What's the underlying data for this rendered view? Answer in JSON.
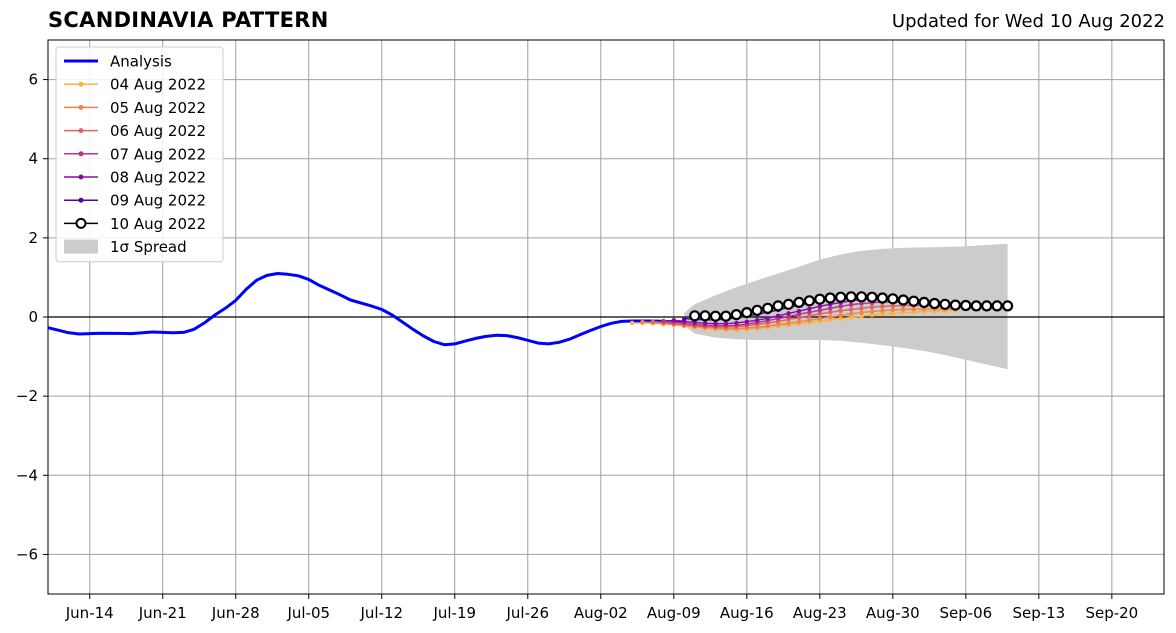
{
  "chart_data": {
    "type": "line",
    "title": "SCANDINAVIA PATTERN",
    "subtitle": "Updated for Wed 10 Aug 2022",
    "xlim": [
      "2022-06-10",
      "2022-09-25"
    ],
    "ylim": [
      -7,
      7
    ],
    "y_ticks": [
      -6,
      -4,
      -2,
      0,
      2,
      4,
      6
    ],
    "y_tick_labels": [
      "−6",
      "−4",
      "−2",
      "0",
      "2",
      "4",
      "6"
    ],
    "x_ticks": [
      "2022-06-14",
      "2022-06-21",
      "2022-06-28",
      "2022-07-05",
      "2022-07-12",
      "2022-07-19",
      "2022-07-26",
      "2022-08-02",
      "2022-08-09",
      "2022-08-16",
      "2022-08-23",
      "2022-08-30",
      "2022-09-06",
      "2022-09-13",
      "2022-09-20"
    ],
    "x_tick_labels": [
      "Jun-14",
      "Jun-21",
      "Jun-28",
      "Jul-05",
      "Jul-12",
      "Jul-19",
      "Jul-26",
      "Aug-02",
      "Aug-09",
      "Aug-16",
      "Aug-23",
      "Aug-30",
      "Sep-06",
      "Sep-13",
      "Sep-20"
    ],
    "grid": true,
    "legend_position": "top-left",
    "zero_line": true,
    "analysis": {
      "name": "Analysis",
      "color": "#0000ff",
      "points": [
        [
          "2022-06-10",
          -0.27
        ],
        [
          "2022-06-12",
          -0.4
        ],
        [
          "2022-06-13",
          -0.43
        ],
        [
          "2022-06-15",
          -0.41
        ],
        [
          "2022-06-18",
          -0.42
        ],
        [
          "2022-06-20",
          -0.38
        ],
        [
          "2022-06-22",
          -0.4
        ],
        [
          "2022-06-23",
          -0.39
        ],
        [
          "2022-06-24",
          -0.31
        ],
        [
          "2022-06-25",
          -0.15
        ],
        [
          "2022-06-26",
          0.05
        ],
        [
          "2022-06-27",
          0.22
        ],
        [
          "2022-06-28",
          0.42
        ],
        [
          "2022-06-29",
          0.7
        ],
        [
          "2022-06-30",
          0.93
        ],
        [
          "2022-07-01",
          1.05
        ],
        [
          "2022-07-02",
          1.1
        ],
        [
          "2022-07-03",
          1.08
        ],
        [
          "2022-07-04",
          1.04
        ],
        [
          "2022-07-05",
          0.95
        ],
        [
          "2022-07-06",
          0.8
        ],
        [
          "2022-07-08",
          0.56
        ],
        [
          "2022-07-09",
          0.43
        ],
        [
          "2022-07-11",
          0.28
        ],
        [
          "2022-07-12",
          0.19
        ],
        [
          "2022-07-13",
          0.05
        ],
        [
          "2022-07-14",
          -0.13
        ],
        [
          "2022-07-15",
          -0.31
        ],
        [
          "2022-07-16",
          -0.48
        ],
        [
          "2022-07-17",
          -0.62
        ],
        [
          "2022-07-18",
          -0.7
        ],
        [
          "2022-07-19",
          -0.68
        ],
        [
          "2022-07-20",
          -0.61
        ],
        [
          "2022-07-21",
          -0.54
        ],
        [
          "2022-07-22",
          -0.49
        ],
        [
          "2022-07-23",
          -0.46
        ],
        [
          "2022-07-24",
          -0.47
        ],
        [
          "2022-07-25",
          -0.52
        ],
        [
          "2022-07-26",
          -0.59
        ],
        [
          "2022-07-27",
          -0.66
        ],
        [
          "2022-07-28",
          -0.68
        ],
        [
          "2022-07-29",
          -0.64
        ],
        [
          "2022-07-30",
          -0.56
        ],
        [
          "2022-07-31",
          -0.45
        ],
        [
          "2022-08-01",
          -0.34
        ],
        [
          "2022-08-02",
          -0.24
        ],
        [
          "2022-08-03",
          -0.16
        ],
        [
          "2022-08-04",
          -0.11
        ],
        [
          "2022-08-05",
          -0.1
        ],
        [
          "2022-08-06",
          -0.1
        ],
        [
          "2022-08-07",
          -0.1
        ],
        [
          "2022-08-08",
          -0.11
        ],
        [
          "2022-08-09",
          -0.12
        ],
        [
          "2022-08-10",
          -0.12
        ]
      ]
    },
    "spread": {
      "name": "1σ Spread",
      "color": "#cccccc",
      "points": [
        [
          "2022-08-10",
          0.1,
          -0.22
        ],
        [
          "2022-08-11",
          0.32,
          -0.42
        ],
        [
          "2022-08-13",
          0.55,
          -0.52
        ],
        [
          "2022-08-15",
          0.75,
          -0.56
        ],
        [
          "2022-08-17",
          0.93,
          -0.58
        ],
        [
          "2022-08-19",
          1.1,
          -0.58
        ],
        [
          "2022-08-21",
          1.27,
          -0.58
        ],
        [
          "2022-08-23",
          1.45,
          -0.58
        ],
        [
          "2022-08-25",
          1.58,
          -0.6
        ],
        [
          "2022-08-27",
          1.67,
          -0.65
        ],
        [
          "2022-08-29",
          1.72,
          -0.71
        ],
        [
          "2022-08-31",
          1.75,
          -0.78
        ],
        [
          "2022-09-02",
          1.76,
          -0.86
        ],
        [
          "2022-09-04",
          1.77,
          -0.96
        ],
        [
          "2022-09-06",
          1.79,
          -1.08
        ],
        [
          "2022-09-08",
          1.82,
          -1.2
        ],
        [
          "2022-09-10",
          1.85,
          -1.32
        ]
      ]
    },
    "forecasts": [
      {
        "name": "04 Aug 2022",
        "color": "#fbb338",
        "start": "2022-08-05",
        "values": [
          -0.15,
          -0.15,
          -0.16,
          -0.18,
          -0.2,
          -0.23,
          -0.26,
          -0.29,
          -0.31,
          -0.32,
          -0.32,
          -0.31,
          -0.29,
          -0.26,
          -0.23,
          -0.2,
          -0.17,
          -0.14,
          -0.1,
          -0.07,
          -0.04,
          -0.01,
          0.02,
          0.05,
          0.07,
          0.09,
          0.11,
          0.13,
          0.14,
          0.15,
          0.16,
          0.17
        ]
      },
      {
        "name": "05 Aug 2022",
        "color": "#f1844b",
        "start": "2022-08-06",
        "values": [
          -0.13,
          -0.14,
          -0.16,
          -0.18,
          -0.21,
          -0.24,
          -0.26,
          -0.28,
          -0.29,
          -0.29,
          -0.28,
          -0.26,
          -0.23,
          -0.19,
          -0.16,
          -0.12,
          -0.08,
          -0.04,
          0.0,
          0.04,
          0.08,
          0.11,
          0.14,
          0.16,
          0.18,
          0.19,
          0.2,
          0.2,
          0.2,
          0.2,
          0.2
        ]
      },
      {
        "name": "06 Aug 2022",
        "color": "#e16462",
        "start": "2022-08-07",
        "values": [
          -0.12,
          -0.14,
          -0.17,
          -0.19,
          -0.22,
          -0.24,
          -0.25,
          -0.25,
          -0.24,
          -0.22,
          -0.19,
          -0.15,
          -0.11,
          -0.06,
          -0.02,
          0.03,
          0.08,
          0.12,
          0.16,
          0.19,
          0.22,
          0.25,
          0.27,
          0.28,
          0.29,
          0.29,
          0.29,
          0.28,
          0.27,
          0.26
        ]
      },
      {
        "name": "07 Aug 2022",
        "color": "#b93289",
        "start": "2022-08-08",
        "values": [
          -0.1,
          -0.13,
          -0.16,
          -0.19,
          -0.21,
          -0.22,
          -0.22,
          -0.21,
          -0.18,
          -0.14,
          -0.09,
          -0.04,
          0.01,
          0.07,
          0.12,
          0.17,
          0.22,
          0.27,
          0.31,
          0.34,
          0.36,
          0.38,
          0.38,
          0.38,
          0.37,
          0.35,
          0.33,
          0.31,
          0.29
        ]
      },
      {
        "name": "08 Aug 2022",
        "color": "#8b0aa5",
        "start": "2022-08-09",
        "values": [
          -0.08,
          -0.11,
          -0.14,
          -0.16,
          -0.17,
          -0.17,
          -0.15,
          -0.12,
          -0.08,
          -0.03,
          0.03,
          0.09,
          0.15,
          0.21,
          0.27,
          0.32,
          0.37,
          0.41,
          0.44,
          0.46,
          0.47,
          0.47,
          0.46,
          0.44,
          0.42,
          0.39,
          0.36,
          0.33
        ]
      },
      {
        "name": "09 Aug 2022",
        "color": "#5302a3",
        "start": "2022-08-10",
        "values": [
          -0.04,
          -0.06,
          -0.07,
          -0.07,
          -0.05,
          -0.02,
          0.02,
          0.07,
          0.12,
          0.18,
          0.24,
          0.3,
          0.35,
          0.4,
          0.44,
          0.47,
          0.49,
          0.5,
          0.5,
          0.49,
          0.47,
          0.44,
          0.41,
          0.38,
          0.35,
          0.32,
          0.3
        ]
      },
      {
        "name": "10 Aug 2022",
        "color": "#000000",
        "start": "2022-08-11",
        "values": [
          0.03,
          0.03,
          0.02,
          0.02,
          0.06,
          0.11,
          0.17,
          0.22,
          0.28,
          0.32,
          0.37,
          0.41,
          0.45,
          0.48,
          0.5,
          0.51,
          0.51,
          0.5,
          0.48,
          0.46,
          0.43,
          0.4,
          0.37,
          0.34,
          0.32,
          0.3,
          0.29,
          0.28,
          0.28,
          0.28,
          0.28
        ]
      }
    ]
  }
}
